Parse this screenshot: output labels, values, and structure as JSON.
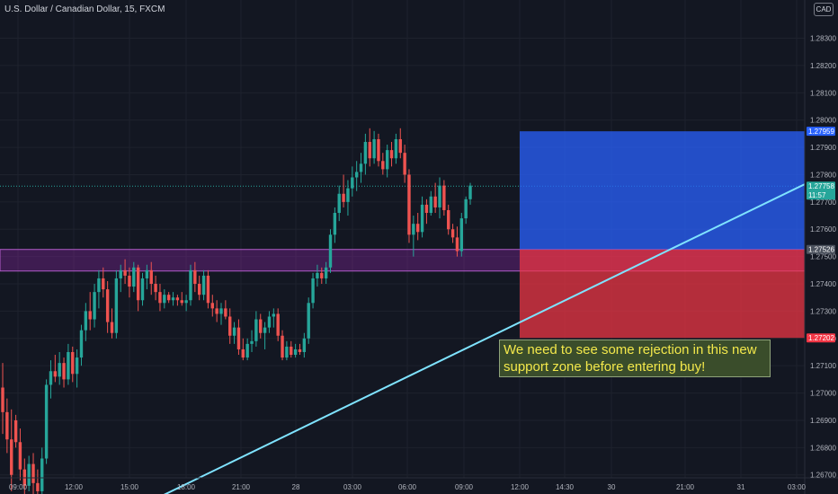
{
  "title": "U.S. Dollar / Canadian Dollar, 15, FXCM",
  "currency_badge": "CAD",
  "note": "We need to see some rejection in this new support zone before entering buy!",
  "colors": {
    "background": "#131722",
    "grid": "#1e222d",
    "up": "#26a69a",
    "down": "#ef5350",
    "axis_text": "#b2b5be",
    "zone_purple": "#8e24aa",
    "target_zone": "#2962ff",
    "stop_zone": "#f23645",
    "trendline": "#7fe3ff"
  },
  "price_labels": {
    "target": "1.27959",
    "current": "1.27758",
    "countdown": "11:57",
    "entry": "1.27526",
    "stop": "1.27202"
  },
  "chart_data": {
    "type": "candlestick",
    "title": "U.S. Dollar / Canadian Dollar, 15, FXCM",
    "y_ticks": [
      "1.28300",
      "1.28200",
      "1.28100",
      "1.28000",
      "1.27900",
      "1.27800",
      "1.27700",
      "1.27600",
      "1.27500",
      "1.27400",
      "1.27300",
      "1.27200",
      "1.27100",
      "1.27000",
      "1.26900",
      "1.26800",
      "1.26700"
    ],
    "x_ticks": [
      "09:00",
      "12:00",
      "15:00",
      "18:00",
      "21:00",
      "28",
      "03:00",
      "06:00",
      "09:00",
      "12:00",
      "14:30",
      "30",
      "21:00",
      "31",
      "03:00"
    ],
    "ylim": [
      1.2663,
      1.2844
    ],
    "candles": [
      {
        "o": 1.2702,
        "h": 1.2711,
        "l": 1.2685,
        "c": 1.2693
      },
      {
        "o": 1.2693,
        "h": 1.2698,
        "l": 1.2678,
        "c": 1.2683
      },
      {
        "o": 1.2683,
        "h": 1.2694,
        "l": 1.2664,
        "c": 1.267
      },
      {
        "o": 1.269,
        "h": 1.2692,
        "l": 1.268,
        "c": 1.2682
      },
      {
        "o": 1.2682,
        "h": 1.2687,
        "l": 1.2668,
        "c": 1.2672
      },
      {
        "o": 1.2672,
        "h": 1.2676,
        "l": 1.2662,
        "c": 1.2666
      },
      {
        "o": 1.2666,
        "h": 1.2677,
        "l": 1.2664,
        "c": 1.2674
      },
      {
        "o": 1.2674,
        "h": 1.2678,
        "l": 1.2663,
        "c": 1.2667
      },
      {
        "o": 1.2667,
        "h": 1.2672,
        "l": 1.2661,
        "c": 1.2664
      },
      {
        "o": 1.2664,
        "h": 1.268,
        "l": 1.2662,
        "c": 1.2676
      },
      {
        "o": 1.2676,
        "h": 1.2705,
        "l": 1.2674,
        "c": 1.2703
      },
      {
        "o": 1.2703,
        "h": 1.2712,
        "l": 1.2698,
        "c": 1.2708
      },
      {
        "o": 1.2708,
        "h": 1.2714,
        "l": 1.2704,
        "c": 1.2706
      },
      {
        "o": 1.2706,
        "h": 1.2715,
        "l": 1.2703,
        "c": 1.2711
      },
      {
        "o": 1.2711,
        "h": 1.2713,
        "l": 1.2702,
        "c": 1.2705
      },
      {
        "o": 1.2705,
        "h": 1.2718,
        "l": 1.2703,
        "c": 1.2715
      },
      {
        "o": 1.2715,
        "h": 1.2717,
        "l": 1.2704,
        "c": 1.2707
      },
      {
        "o": 1.2707,
        "h": 1.2716,
        "l": 1.2702,
        "c": 1.2713
      },
      {
        "o": 1.2713,
        "h": 1.2725,
        "l": 1.271,
        "c": 1.2723
      },
      {
        "o": 1.2723,
        "h": 1.2733,
        "l": 1.2719,
        "c": 1.273
      },
      {
        "o": 1.273,
        "h": 1.2737,
        "l": 1.2723,
        "c": 1.2727
      },
      {
        "o": 1.2727,
        "h": 1.274,
        "l": 1.2724,
        "c": 1.2737
      },
      {
        "o": 1.2737,
        "h": 1.2745,
        "l": 1.2731,
        "c": 1.2742
      },
      {
        "o": 1.2742,
        "h": 1.2746,
        "l": 1.2735,
        "c": 1.2738
      },
      {
        "o": 1.2738,
        "h": 1.2741,
        "l": 1.2722,
        "c": 1.2726
      },
      {
        "o": 1.2726,
        "h": 1.2731,
        "l": 1.272,
        "c": 1.2722
      },
      {
        "o": 1.2722,
        "h": 1.2745,
        "l": 1.272,
        "c": 1.2742
      },
      {
        "o": 1.2742,
        "h": 1.2747,
        "l": 1.2737,
        "c": 1.2745
      },
      {
        "o": 1.2745,
        "h": 1.2749,
        "l": 1.274,
        "c": 1.2743
      },
      {
        "o": 1.2743,
        "h": 1.2746,
        "l": 1.2735,
        "c": 1.2739
      },
      {
        "o": 1.2739,
        "h": 1.2748,
        "l": 1.2737,
        "c": 1.2746
      },
      {
        "o": 1.2746,
        "h": 1.2747,
        "l": 1.273,
        "c": 1.2734
      },
      {
        "o": 1.2734,
        "h": 1.2744,
        "l": 1.2732,
        "c": 1.2742
      },
      {
        "o": 1.2742,
        "h": 1.2747,
        "l": 1.2738,
        "c": 1.2745
      },
      {
        "o": 1.2745,
        "h": 1.2748,
        "l": 1.2736,
        "c": 1.274
      },
      {
        "o": 1.274,
        "h": 1.2743,
        "l": 1.2734,
        "c": 1.2737
      },
      {
        "o": 1.2737,
        "h": 1.274,
        "l": 1.273,
        "c": 1.2733
      },
      {
        "o": 1.2733,
        "h": 1.2738,
        "l": 1.2731,
        "c": 1.2736
      },
      {
        "o": 1.2736,
        "h": 1.2737,
        "l": 1.2733,
        "c": 1.2734
      },
      {
        "o": 1.2734,
        "h": 1.2737,
        "l": 1.2732,
        "c": 1.2735
      },
      {
        "o": 1.2735,
        "h": 1.2736,
        "l": 1.2732,
        "c": 1.2734
      },
      {
        "o": 1.2734,
        "h": 1.2737,
        "l": 1.2732,
        "c": 1.2733
      },
      {
        "o": 1.2733,
        "h": 1.2736,
        "l": 1.273,
        "c": 1.2734
      },
      {
        "o": 1.2734,
        "h": 1.2747,
        "l": 1.2732,
        "c": 1.2745
      },
      {
        "o": 1.2745,
        "h": 1.2748,
        "l": 1.2737,
        "c": 1.274
      },
      {
        "o": 1.274,
        "h": 1.2743,
        "l": 1.2734,
        "c": 1.2736
      },
      {
        "o": 1.2736,
        "h": 1.2745,
        "l": 1.2734,
        "c": 1.2743
      },
      {
        "o": 1.2743,
        "h": 1.2745,
        "l": 1.2731,
        "c": 1.2733
      },
      {
        "o": 1.2733,
        "h": 1.2736,
        "l": 1.2728,
        "c": 1.2731
      },
      {
        "o": 1.2731,
        "h": 1.2734,
        "l": 1.2726,
        "c": 1.2729
      },
      {
        "o": 1.2729,
        "h": 1.2733,
        "l": 1.2725,
        "c": 1.2731
      },
      {
        "o": 1.2731,
        "h": 1.2734,
        "l": 1.2727,
        "c": 1.2728
      },
      {
        "o": 1.2728,
        "h": 1.2731,
        "l": 1.2718,
        "c": 1.2721
      },
      {
        "o": 1.2721,
        "h": 1.2726,
        "l": 1.2718,
        "c": 1.2724
      },
      {
        "o": 1.2724,
        "h": 1.2727,
        "l": 1.2714,
        "c": 1.2716
      },
      {
        "o": 1.2716,
        "h": 1.272,
        "l": 1.2712,
        "c": 1.2713
      },
      {
        "o": 1.2713,
        "h": 1.272,
        "l": 1.2712,
        "c": 1.2718
      },
      {
        "o": 1.2718,
        "h": 1.2723,
        "l": 1.2715,
        "c": 1.2719
      },
      {
        "o": 1.2719,
        "h": 1.273,
        "l": 1.2717,
        "c": 1.2727
      },
      {
        "o": 1.2727,
        "h": 1.2729,
        "l": 1.272,
        "c": 1.2722
      },
      {
        "o": 1.2722,
        "h": 1.2726,
        "l": 1.2716,
        "c": 1.2724
      },
      {
        "o": 1.2724,
        "h": 1.273,
        "l": 1.2722,
        "c": 1.2728
      },
      {
        "o": 1.2728,
        "h": 1.2731,
        "l": 1.2724,
        "c": 1.2729
      },
      {
        "o": 1.2729,
        "h": 1.2731,
        "l": 1.2719,
        "c": 1.2721
      },
      {
        "o": 1.2721,
        "h": 1.2723,
        "l": 1.2712,
        "c": 1.2713
      },
      {
        "o": 1.2713,
        "h": 1.2719,
        "l": 1.2712,
        "c": 1.2717
      },
      {
        "o": 1.2717,
        "h": 1.2719,
        "l": 1.2713,
        "c": 1.2714
      },
      {
        "o": 1.2714,
        "h": 1.2718,
        "l": 1.2713,
        "c": 1.2716
      },
      {
        "o": 1.2716,
        "h": 1.2718,
        "l": 1.2714,
        "c": 1.2715
      },
      {
        "o": 1.2715,
        "h": 1.2722,
        "l": 1.2713,
        "c": 1.272
      },
      {
        "o": 1.272,
        "h": 1.2735,
        "l": 1.2718,
        "c": 1.2733
      },
      {
        "o": 1.2733,
        "h": 1.2744,
        "l": 1.2731,
        "c": 1.2742
      },
      {
        "o": 1.2742,
        "h": 1.2747,
        "l": 1.2739,
        "c": 1.2744
      },
      {
        "o": 1.2744,
        "h": 1.2746,
        "l": 1.274,
        "c": 1.2742
      },
      {
        "o": 1.2742,
        "h": 1.2748,
        "l": 1.274,
        "c": 1.2746
      },
      {
        "o": 1.2746,
        "h": 1.276,
        "l": 1.2744,
        "c": 1.2758
      },
      {
        "o": 1.2758,
        "h": 1.2768,
        "l": 1.2755,
        "c": 1.2766
      },
      {
        "o": 1.2766,
        "h": 1.2776,
        "l": 1.2763,
        "c": 1.2773
      },
      {
        "o": 1.2773,
        "h": 1.278,
        "l": 1.2768,
        "c": 1.277
      },
      {
        "o": 1.277,
        "h": 1.2778,
        "l": 1.2765,
        "c": 1.2775
      },
      {
        "o": 1.2775,
        "h": 1.2783,
        "l": 1.2772,
        "c": 1.2779
      },
      {
        "o": 1.2779,
        "h": 1.2785,
        "l": 1.2774,
        "c": 1.2781
      },
      {
        "o": 1.2781,
        "h": 1.2788,
        "l": 1.2777,
        "c": 1.2784
      },
      {
        "o": 1.2784,
        "h": 1.2795,
        "l": 1.278,
        "c": 1.2792
      },
      {
        "o": 1.2792,
        "h": 1.2797,
        "l": 1.2783,
        "c": 1.2786
      },
      {
        "o": 1.2786,
        "h": 1.2796,
        "l": 1.2784,
        "c": 1.2793
      },
      {
        "o": 1.2793,
        "h": 1.2795,
        "l": 1.2783,
        "c": 1.2785
      },
      {
        "o": 1.2785,
        "h": 1.2788,
        "l": 1.278,
        "c": 1.2782
      },
      {
        "o": 1.2782,
        "h": 1.2791,
        "l": 1.2779,
        "c": 1.2789
      },
      {
        "o": 1.2789,
        "h": 1.2792,
        "l": 1.2783,
        "c": 1.2786
      },
      {
        "o": 1.2786,
        "h": 1.2795,
        "l": 1.2784,
        "c": 1.2793
      },
      {
        "o": 1.2793,
        "h": 1.2797,
        "l": 1.2786,
        "c": 1.2788
      },
      {
        "o": 1.2788,
        "h": 1.2791,
        "l": 1.2777,
        "c": 1.278
      },
      {
        "o": 1.278,
        "h": 1.2782,
        "l": 1.2755,
        "c": 1.2758
      },
      {
        "o": 1.2758,
        "h": 1.2765,
        "l": 1.275,
        "c": 1.2762
      },
      {
        "o": 1.2762,
        "h": 1.2766,
        "l": 1.2756,
        "c": 1.2759
      },
      {
        "o": 1.2759,
        "h": 1.2772,
        "l": 1.2757,
        "c": 1.2769
      },
      {
        "o": 1.2769,
        "h": 1.2771,
        "l": 1.2762,
        "c": 1.2766
      },
      {
        "o": 1.2766,
        "h": 1.2774,
        "l": 1.2765,
        "c": 1.2772
      },
      {
        "o": 1.2772,
        "h": 1.2777,
        "l": 1.2766,
        "c": 1.2768
      },
      {
        "o": 1.2768,
        "h": 1.2779,
        "l": 1.2764,
        "c": 1.2776
      },
      {
        "o": 1.2776,
        "h": 1.2778,
        "l": 1.2765,
        "c": 1.2767
      },
      {
        "o": 1.2767,
        "h": 1.2769,
        "l": 1.2758,
        "c": 1.276
      },
      {
        "o": 1.276,
        "h": 1.2762,
        "l": 1.2755,
        "c": 1.2757
      },
      {
        "o": 1.2757,
        "h": 1.2761,
        "l": 1.275,
        "c": 1.2752
      },
      {
        "o": 1.2752,
        "h": 1.2766,
        "l": 1.275,
        "c": 1.2764
      },
      {
        "o": 1.2764,
        "h": 1.2772,
        "l": 1.2762,
        "c": 1.2771
      },
      {
        "o": 1.2771,
        "h": 1.2777,
        "l": 1.2769,
        "c": 1.2776
      }
    ],
    "zones": {
      "support_zone": {
        "from": 1.27447,
        "to": 1.27526
      },
      "target_zone": {
        "from": 1.27526,
        "to": 1.27959
      },
      "stop_zone": {
        "from": 1.27202,
        "to": 1.27526
      }
    },
    "trendline": {
      "from_price": 1.2662,
      "to_price": 1.27765
    },
    "current_price": 1.27758
  }
}
